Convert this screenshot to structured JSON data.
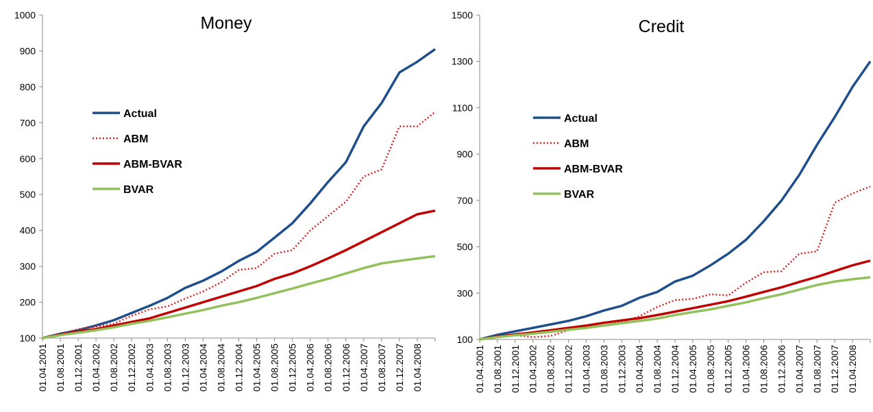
{
  "chart_data": [
    {
      "type": "line",
      "title": "Money",
      "categories": [
        "01.04.2001",
        "01.08.2001",
        "01.12.2001",
        "01.04.2002",
        "01.08.2002",
        "01.12.2002",
        "01.04.2003",
        "01.08.2003",
        "01.12.2003",
        "01.04.2004",
        "01.08.2004",
        "01.12.2004",
        "01.04.2005",
        "01.08.2005",
        "01.12.2005",
        "01.04.2006",
        "01.08.2006",
        "01.12.2006",
        "01.04.2007",
        "01.08.2007",
        "01.12.2007",
        "01.04.2008",
        null
      ],
      "ylim": [
        100,
        1000
      ],
      "yticks": [
        100,
        200,
        300,
        400,
        500,
        600,
        700,
        800,
        900,
        1000
      ],
      "series": [
        {
          "name": "Actual",
          "color": "#1f4e8c",
          "values": [
            100,
            112,
            122,
            135,
            150,
            170,
            190,
            212,
            240,
            260,
            285,
            315,
            340,
            380,
            420,
            475,
            535,
            590,
            690,
            755,
            840,
            870,
            905
          ]
        },
        {
          "name": "ABM",
          "color": "#d42020",
          "dashed": true,
          "values": [
            100,
            110,
            125,
            132,
            140,
            162,
            180,
            188,
            210,
            230,
            255,
            290,
            295,
            335,
            345,
            400,
            440,
            480,
            550,
            570,
            690,
            690,
            730
          ]
        },
        {
          "name": "ABM-BVAR",
          "color": "#c00000",
          "values": [
            100,
            110,
            118,
            125,
            135,
            145,
            155,
            170,
            185,
            200,
            215,
            230,
            245,
            265,
            280,
            300,
            322,
            345,
            370,
            395,
            420,
            445,
            455
          ]
        },
        {
          "name": "BVAR",
          "color": "#92c05a",
          "values": [
            100,
            108,
            115,
            122,
            130,
            140,
            148,
            158,
            168,
            178,
            190,
            200,
            212,
            225,
            238,
            252,
            265,
            280,
            295,
            308,
            315,
            322,
            328
          ]
        }
      ]
    },
    {
      "type": "line",
      "title": "Credit",
      "categories": [
        "01.04.2001",
        "01.08.2001",
        "01.12.2001",
        "01.04.2002",
        "01.08.2002",
        "01.12.2002",
        "01.04.2003",
        "01.08.2003",
        "01.12.2003",
        "01.04.2004",
        "01.08.2004",
        "01.12.2004",
        "01.04.2005",
        "01.08.2005",
        "01.12.2005",
        "01.04.2006",
        "01.08.2006",
        "01.12.2006",
        "01.04.2007",
        "01.08.2007",
        "01.12.2007",
        "01.04.2008",
        null
      ],
      "ylim": [
        100,
        1500
      ],
      "yticks": [
        100,
        300,
        500,
        700,
        900,
        1100,
        1300,
        1500
      ],
      "series": [
        {
          "name": "Actual",
          "color": "#1f4e8c",
          "values": [
            100,
            120,
            135,
            150,
            165,
            180,
            200,
            225,
            245,
            280,
            305,
            350,
            375,
            420,
            470,
            530,
            610,
            700,
            810,
            940,
            1060,
            1190,
            1300
          ]
        },
        {
          "name": "ABM",
          "color": "#d42020",
          "dashed": true,
          "values": [
            100,
            115,
            118,
            110,
            115,
            140,
            155,
            160,
            175,
            200,
            240,
            270,
            275,
            295,
            290,
            345,
            390,
            395,
            470,
            480,
            690,
            730,
            760
          ]
        },
        {
          "name": "ABM-BVAR",
          "color": "#c00000",
          "values": [
            100,
            112,
            122,
            130,
            140,
            150,
            160,
            172,
            182,
            192,
            205,
            220,
            235,
            250,
            265,
            285,
            305,
            325,
            348,
            370,
            395,
            420,
            440
          ]
        },
        {
          "name": "BVAR",
          "color": "#92c05a",
          "values": [
            100,
            110,
            118,
            125,
            133,
            142,
            150,
            160,
            170,
            180,
            190,
            205,
            218,
            230,
            245,
            260,
            278,
            295,
            315,
            335,
            350,
            360,
            368
          ]
        }
      ]
    }
  ]
}
